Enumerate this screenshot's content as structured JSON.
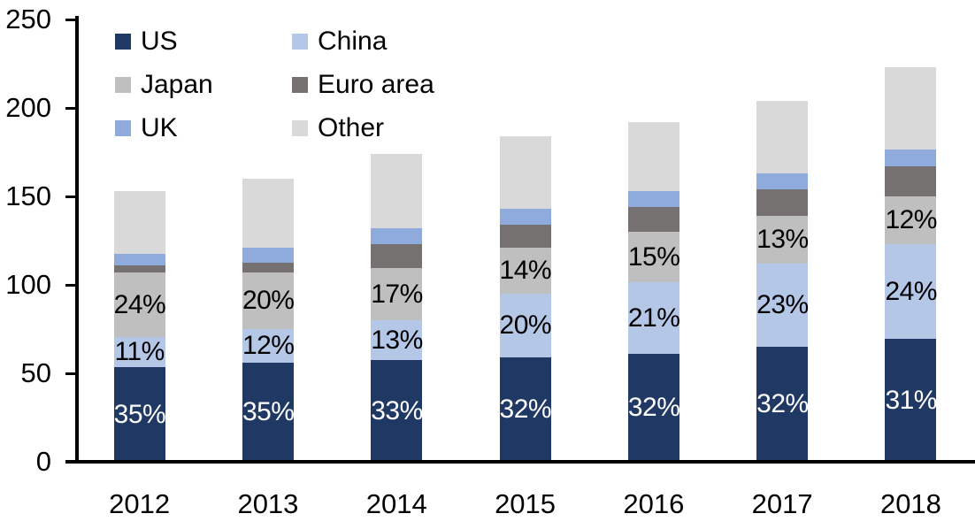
{
  "chart_data": {
    "type": "bar",
    "stacked": true,
    "title": "",
    "categories": [
      "2012",
      "2013",
      "2014",
      "2015",
      "2016",
      "2017",
      "2018"
    ],
    "series": [
      {
        "name": "US",
        "color": "#203864",
        "label_color": "#ffffff",
        "values": [
          53.5,
          56,
          57.5,
          59,
          61,
          65,
          69.5
        ],
        "labels": [
          "35%",
          "35%",
          "33%",
          "32%",
          "32%",
          "32%",
          "31%"
        ]
      },
      {
        "name": "China",
        "color": "#B4C7E7",
        "label_color": "#000000",
        "values": [
          17,
          19,
          22.5,
          36,
          40.5,
          47,
          53.5
        ],
        "labels": [
          "11%",
          "12%",
          "13%",
          "20%",
          "21%",
          "23%",
          "24%"
        ]
      },
      {
        "name": "Japan",
        "color": "#BFBFBF",
        "label_color": "#000000",
        "values": [
          36.5,
          32,
          29.5,
          26,
          28.5,
          27,
          27
        ],
        "labels": [
          "24%",
          "20%",
          "17%",
          "14%",
          "15%",
          "13%",
          "12%"
        ]
      },
      {
        "name": "Euro area",
        "color": "#767171",
        "values": [
          4,
          5.5,
          13.5,
          13,
          14,
          15,
          17
        ]
      },
      {
        "name": "UK",
        "color": "#8FAADC",
        "values": [
          6.5,
          8.5,
          9,
          9,
          9,
          9,
          9.5
        ]
      },
      {
        "name": "Other",
        "color": "#D9D9D9",
        "values": [
          35.5,
          39,
          42,
          41,
          39,
          41,
          46.5
        ]
      }
    ],
    "totals": [
      153,
      160,
      174,
      184,
      192,
      204,
      223
    ],
    "y_axis": {
      "min": 0,
      "max": 250,
      "tick_step": 50,
      "tick_labels": [
        "0",
        "50",
        "100",
        "150",
        "200",
        "250"
      ]
    },
    "x_axis": {
      "tick_labels": [
        "2012",
        "2013",
        "2014",
        "2015",
        "2016",
        "2017",
        "2018"
      ]
    },
    "legend": {
      "position": "top-left",
      "columns": 2,
      "entries": [
        "US",
        "China",
        "Japan",
        "Euro area",
        "UK",
        "Other"
      ]
    },
    "axis_color": "#000000",
    "background_color": "#ffffff",
    "grid": false
  }
}
